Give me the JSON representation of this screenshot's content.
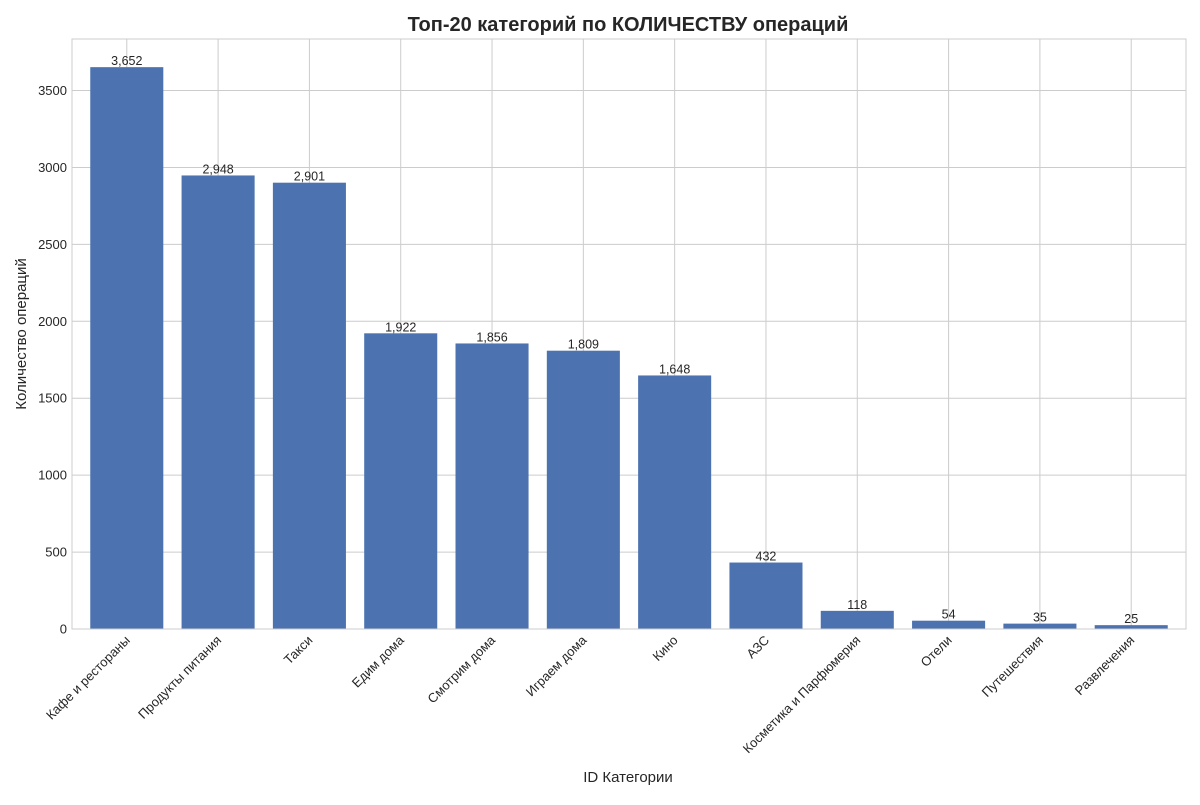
{
  "chart_data": {
    "type": "bar",
    "title": "Топ-20 категорий по КОЛИЧЕСТВУ операций",
    "xlabel": "ID Категории",
    "ylabel": "Количество операций",
    "categories": [
      "Кафе и рестораны",
      "Продукты питания",
      "Такси",
      "Едим дома",
      "Смотрим дома",
      "Играем дома",
      "Кино",
      "АЗС",
      "Косметика и Парфюмерия",
      "Отели",
      "Путешествия",
      "Развлечения"
    ],
    "values": [
      3652,
      2948,
      2901,
      1922,
      1856,
      1809,
      1648,
      432,
      118,
      54,
      35,
      25
    ],
    "value_labels": [
      "3,652",
      "2,948",
      "2,901",
      "1,922",
      "1,856",
      "1,809",
      "1,648",
      "432",
      "118",
      "54",
      "35",
      "25"
    ],
    "ylim": [
      0,
      3835
    ],
    "y_ticks": [
      0,
      500,
      1000,
      1500,
      2000,
      2500,
      3000,
      3500
    ],
    "grid": true,
    "bar_color": "#4c72b0",
    "grid_color": "#cccccc"
  }
}
